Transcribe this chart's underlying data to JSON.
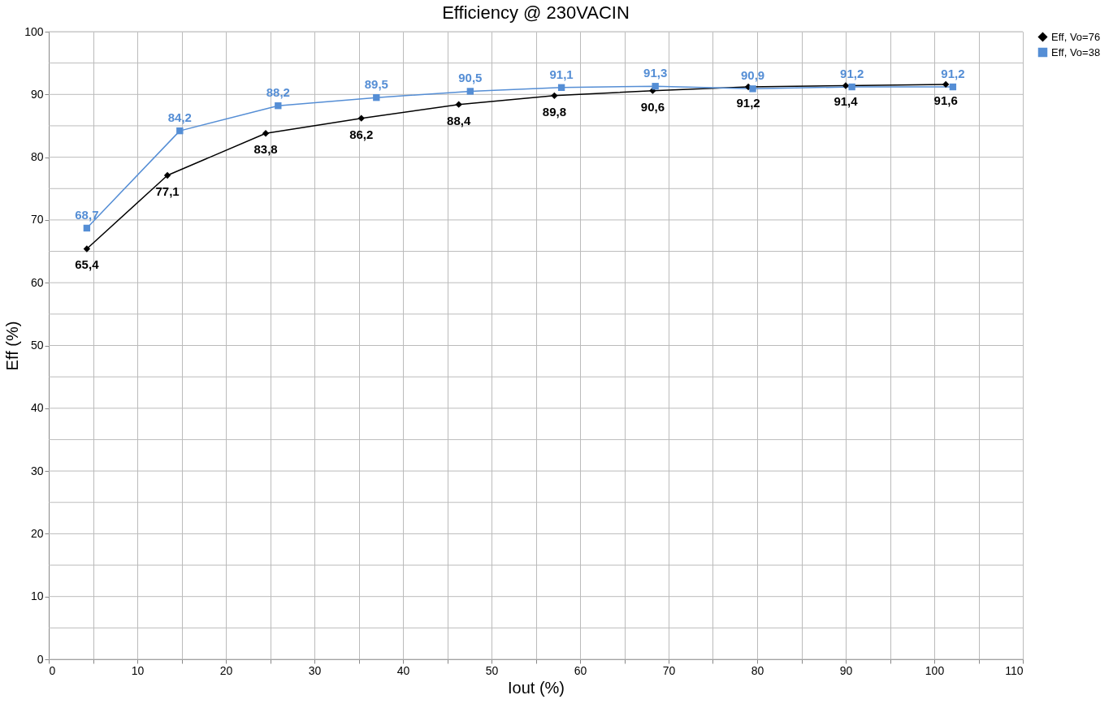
{
  "chart_data": {
    "type": "line",
    "title": "Efficiency @ 230VACIN",
    "xlabel": "Iout (%)",
    "ylabel": "Eff (%)",
    "series": [
      {
        "name": "Eff, Vo=76",
        "color": "#000000",
        "marker": "diamond",
        "x": [
          4.3,
          13.4,
          24.5,
          35.3,
          46.3,
          57.1,
          68.2,
          79.0,
          90.0,
          101.3
        ],
        "values": [
          65.4,
          77.1,
          83.8,
          86.2,
          88.4,
          89.8,
          90.6,
          91.2,
          91.4,
          91.6
        ],
        "value_labels": [
          "65,4",
          "77,1",
          "83,8",
          "86,2",
          "88,4",
          "89,8",
          "90,6",
          "91,2",
          "91,4",
          "91,6"
        ]
      },
      {
        "name": "Eff, Vo=38",
        "color": "#558ed5",
        "marker": "square",
        "x": [
          4.3,
          14.8,
          25.9,
          37.0,
          47.6,
          57.9,
          68.5,
          79.5,
          90.7,
          102.1
        ],
        "values": [
          68.7,
          84.2,
          88.2,
          89.5,
          90.5,
          91.1,
          91.3,
          90.9,
          91.2,
          91.2
        ],
        "value_labels": [
          "68,7",
          "84,2",
          "88,2",
          "89,5",
          "90,5",
          "91,1",
          "91,3",
          "90,9",
          "91,2",
          "91,2"
        ]
      }
    ],
    "xlim": [
      0,
      110
    ],
    "ylim": [
      0,
      100
    ],
    "xticks": [
      0,
      {
        "value": 5,
        "label": null
      },
      10,
      {
        "value": 15,
        "label": null
      },
      20,
      {
        "value": 25,
        "label": null
      },
      30,
      {
        "value": 35,
        "label": null
      },
      40,
      {
        "value": 45,
        "label": null
      },
      50,
      {
        "value": 55,
        "label": null
      },
      60,
      {
        "value": 65,
        "label": null
      },
      70,
      {
        "value": 75,
        "label": null
      },
      80,
      {
        "value": 85,
        "label": null
      },
      90,
      {
        "value": 95,
        "label": null
      },
      100,
      {
        "value": 105,
        "label": null
      },
      110
    ],
    "yticks": [
      0,
      {
        "value": 5,
        "label": null
      },
      10,
      {
        "value": 15,
        "label": null
      },
      20,
      {
        "value": 25,
        "label": null
      },
      30,
      {
        "value": 35,
        "label": null
      },
      40,
      {
        "value": 45,
        "label": null
      },
      50,
      {
        "value": 55,
        "label": null
      },
      60,
      {
        "value": 65,
        "label": null
      },
      70,
      {
        "value": 75,
        "label": null
      },
      80,
      {
        "value": 85,
        "label": null
      },
      90,
      {
        "value": 95,
        "label": null
      },
      100
    ],
    "grid": true,
    "legend": "right",
    "line_style": "solid"
  }
}
